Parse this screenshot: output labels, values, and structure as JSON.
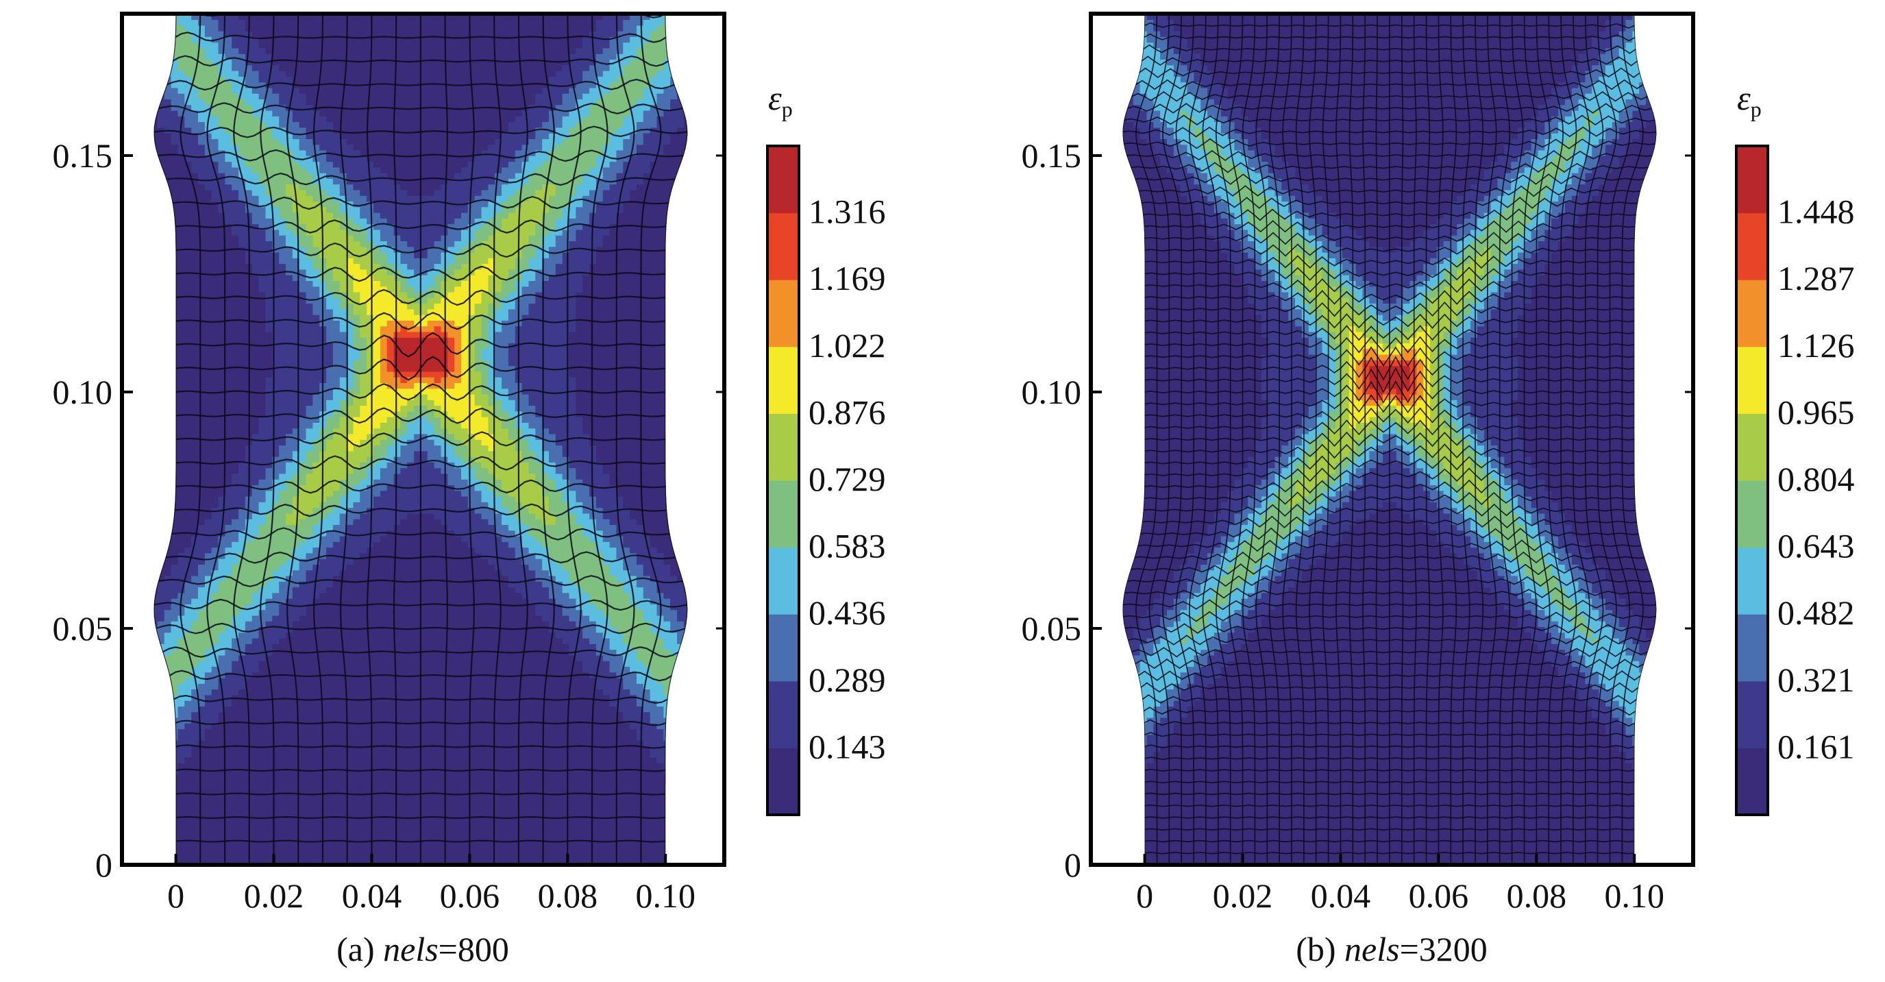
{
  "chart_data": [
    {
      "type": "heatmap",
      "caption_prefix": "(a) ",
      "caption_italic": "nels",
      "caption_suffix": "=800",
      "mesh_divisions": 20,
      "colorbar": {
        "symbol": "ε",
        "subscript": "p",
        "ticks": [
          "1.316",
          "1.169",
          "1.022",
          "0.876",
          "0.729",
          "0.583",
          "0.436",
          "0.289",
          "0.143"
        ]
      },
      "x_ticks": [
        "0",
        "0.02",
        "0.04",
        "0.06",
        "0.08",
        "0.10"
      ],
      "x_tick_values": [
        0,
        0.02,
        0.04,
        0.06,
        0.08,
        0.1
      ],
      "y_ticks": [
        "0",
        "0.05",
        "0.10",
        "0.15"
      ],
      "y_tick_values": [
        0,
        0.05,
        0.1,
        0.15
      ],
      "xlim": [
        -0.011,
        0.112
      ],
      "ylim": [
        0,
        0.18
      ],
      "hotspot_center": [
        0.05,
        0.108
      ],
      "band_half_width": 0.0085,
      "max_value": 1.46
    },
    {
      "type": "heatmap",
      "caption_prefix": "(b) ",
      "caption_italic": "nels",
      "caption_suffix": "=3200",
      "mesh_divisions": 40,
      "colorbar": {
        "symbol": "ε",
        "subscript": "p",
        "ticks": [
          "1.448",
          "1.287",
          "1.126",
          "0.965",
          "0.804",
          "0.643",
          "0.482",
          "0.321",
          "0.161"
        ]
      },
      "x_ticks": [
        "0",
        "0.02",
        "0.04",
        "0.06",
        "0.08",
        "0.10"
      ],
      "x_tick_values": [
        0,
        0.02,
        0.04,
        0.06,
        0.08,
        0.1
      ],
      "y_ticks": [
        "0",
        "0.05",
        "0.10",
        "0.15"
      ],
      "y_tick_values": [
        0,
        0.05,
        0.1,
        0.15
      ],
      "xlim": [
        -0.011,
        0.112
      ],
      "ylim": [
        0,
        0.18
      ],
      "hotspot_center": [
        0.05,
        0.103
      ],
      "band_half_width": 0.0065,
      "max_value": 1.61
    }
  ],
  "colormap": [
    "#3b2c7a",
    "#3d3a8c",
    "#4a6fb0",
    "#5bbde0",
    "#7fbf7f",
    "#a8cc47",
    "#f5ea2a",
    "#f2902a",
    "#e84428",
    "#b8272a"
  ]
}
